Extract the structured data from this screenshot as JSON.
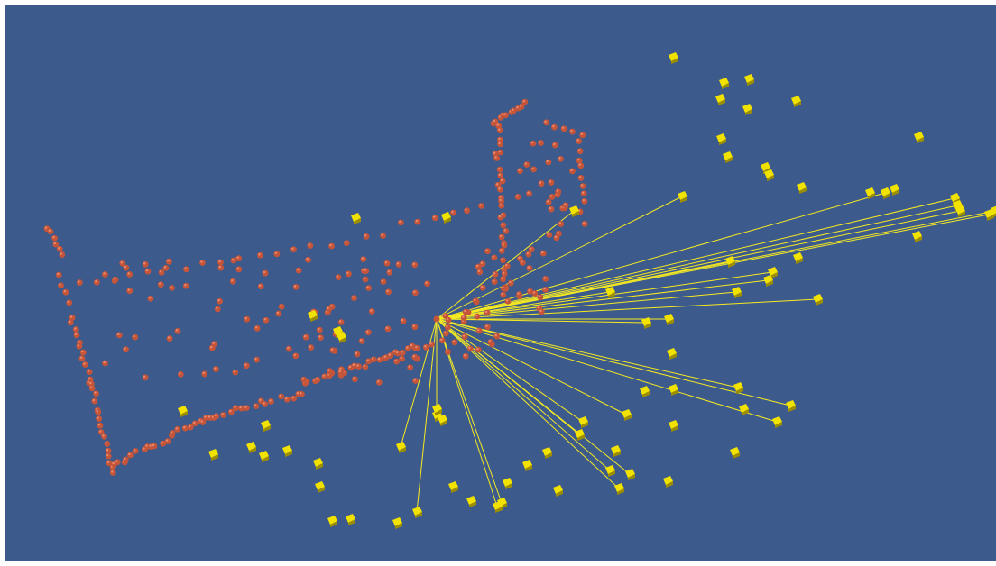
{
  "viewer": {
    "background_color": "#3d5a8c",
    "point_color": "#c4553a",
    "point_highlight_color": "#e98a6e",
    "camera_color": "#f2e200",
    "camera_shadow_color": "#9c8e00",
    "ray_color": "#f5ea22"
  },
  "scene": {
    "point_cloud_icon": "sphere-point",
    "camera_icon": "camera-frustum-glyph",
    "selected_point_icon": "ray-origin-point"
  }
}
